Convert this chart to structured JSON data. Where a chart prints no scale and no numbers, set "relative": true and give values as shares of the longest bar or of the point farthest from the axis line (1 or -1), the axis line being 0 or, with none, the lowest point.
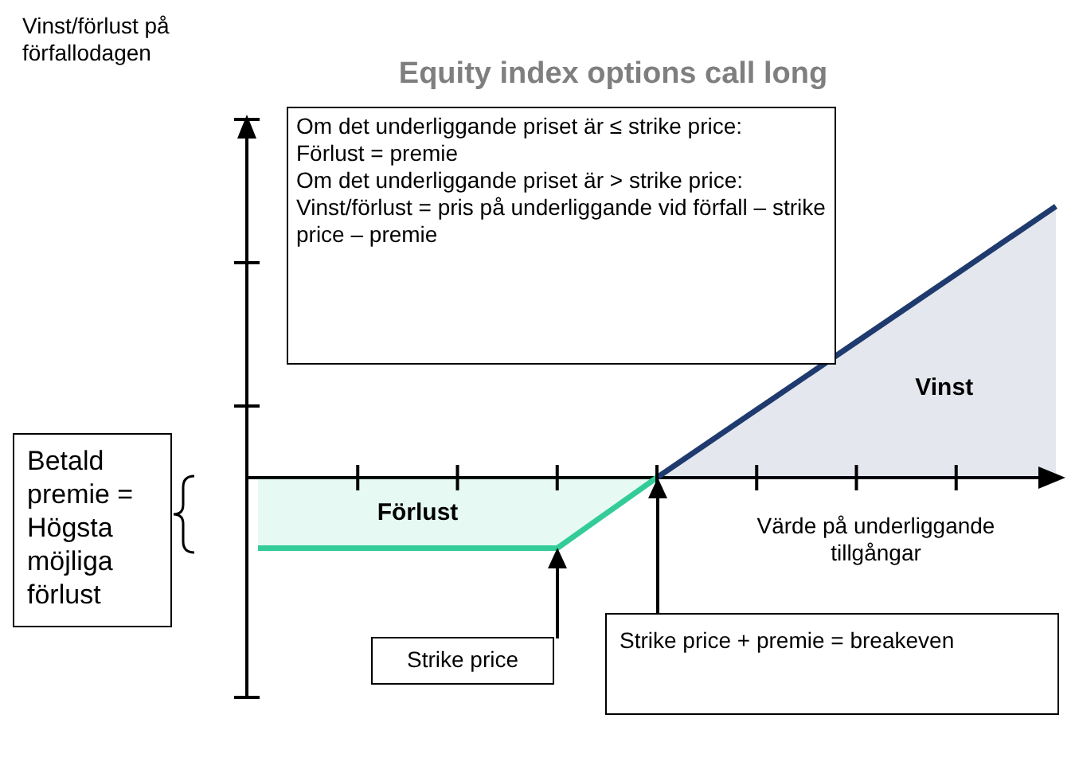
{
  "chart_data": {
    "type": "area",
    "relative": true,
    "title": "Equity index options call long",
    "xlabel": "Värde på underliggande tillgångar",
    "categories": [
      null,
      null,
      null,
      null,
      null,
      null,
      null,
      null,
      null
    ],
    "series": [
      {
        "name": "Förlust",
        "color": "#33cc99",
        "values": [
          -0.26,
          -0.26,
          -0.26,
          -0.26,
          0,
          null,
          null,
          null,
          null
        ]
      },
      {
        "name": "Vinst",
        "color": "#1f3a6e",
        "values": [
          null,
          null,
          null,
          null,
          0,
          0.25,
          0.5,
          0.75,
          1
        ]
      }
    ],
    "annotations": [
      "Vinst/förlust på förfallodagen",
      "Om det underliggande priset är ≤ strike price:\nFörlust = premie\nOm det underliggande priset är > strike price: Vinst/förlust = pris på underliggande vid förfall – strike price – premie",
      "Betald premie = Högsta möjliga förlust",
      "Strike price",
      "Strike price + premie = breakeven"
    ],
    "legend": false
  }
}
